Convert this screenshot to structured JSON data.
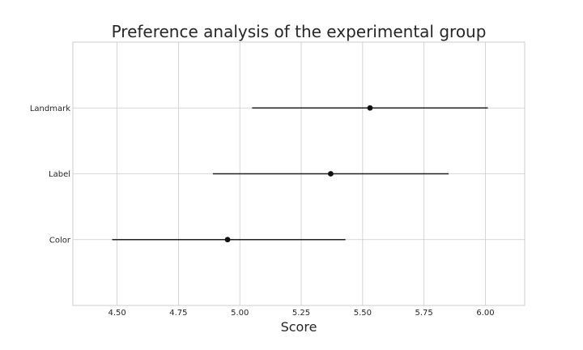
{
  "chart_data": {
    "type": "scatter",
    "title": "Preference analysis of the experimental group",
    "xlabel": "Score",
    "ylabel": "",
    "xlim": [
      4.32,
      6.16
    ],
    "xticks": [
      4.5,
      4.75,
      5.0,
      5.25,
      5.5,
      5.75,
      6.0
    ],
    "xtick_labels": [
      "4.50",
      "4.75",
      "5.00",
      "5.25",
      "5.50",
      "5.75",
      "6.00"
    ],
    "grid": true,
    "categories": [
      "Landmark",
      "Label",
      "Color"
    ],
    "points": [
      {
        "category": "Landmark",
        "mean": 5.53,
        "lower": 5.05,
        "upper": 6.01
      },
      {
        "category": "Label",
        "mean": 5.37,
        "lower": 4.89,
        "upper": 5.85
      },
      {
        "category": "Color",
        "mean": 4.95,
        "lower": 4.48,
        "upper": 5.43
      }
    ],
    "colors": {
      "point": "#111111",
      "interval": "#222222",
      "grid": "#cccccc"
    }
  }
}
